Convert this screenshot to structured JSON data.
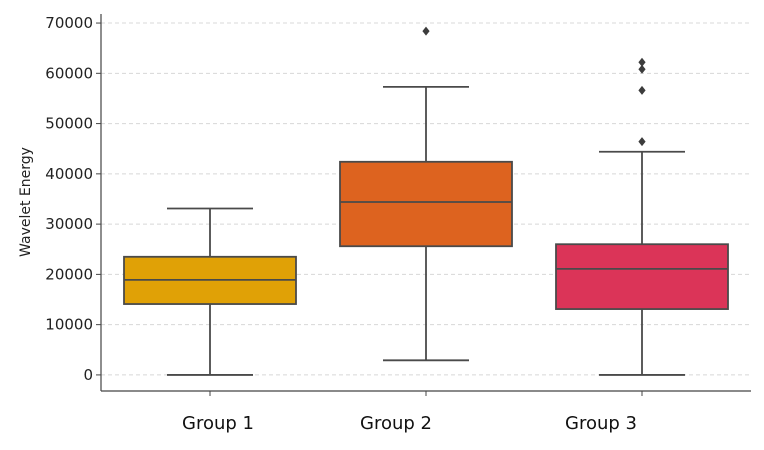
{
  "chart_data": {
    "type": "box",
    "title": "",
    "xlabel": "",
    "ylabel": "Wavelet Energy",
    "ylim": [
      -3200,
      71800
    ],
    "yticks": [
      0,
      10000,
      20000,
      30000,
      40000,
      50000,
      60000,
      70000
    ],
    "ytick_labels": [
      "0",
      "10000",
      "20000",
      "30000",
      "40000",
      "50000",
      "60000",
      "70000"
    ],
    "grid": "horizontal dashed",
    "categories": [
      "Group 1",
      "Group 2",
      "Group 3"
    ],
    "series": [
      {
        "name": "Group 1",
        "color": "#E0A106",
        "whisker_low": 0,
        "q1": 14100,
        "median": 18900,
        "q3": 23500,
        "whisker_high": 33100,
        "outliers": []
      },
      {
        "name": "Group 2",
        "color": "#DD631F",
        "whisker_low": 2900,
        "q1": 25600,
        "median": 34400,
        "q3": 42400,
        "whisker_high": 57300,
        "outliers": [
          68400
        ]
      },
      {
        "name": "Group 3",
        "color": "#DB3458",
        "whisker_low": 0,
        "q1": 13100,
        "median": 21100,
        "q3": 26000,
        "whisker_high": 44400,
        "outliers": [
          46400,
          56600,
          60800,
          62200
        ]
      }
    ]
  },
  "colors": {
    "axis": "#444444",
    "grid": "#d8d8d8",
    "box_edge": "#4a4a4a",
    "background": "#ffffff"
  }
}
